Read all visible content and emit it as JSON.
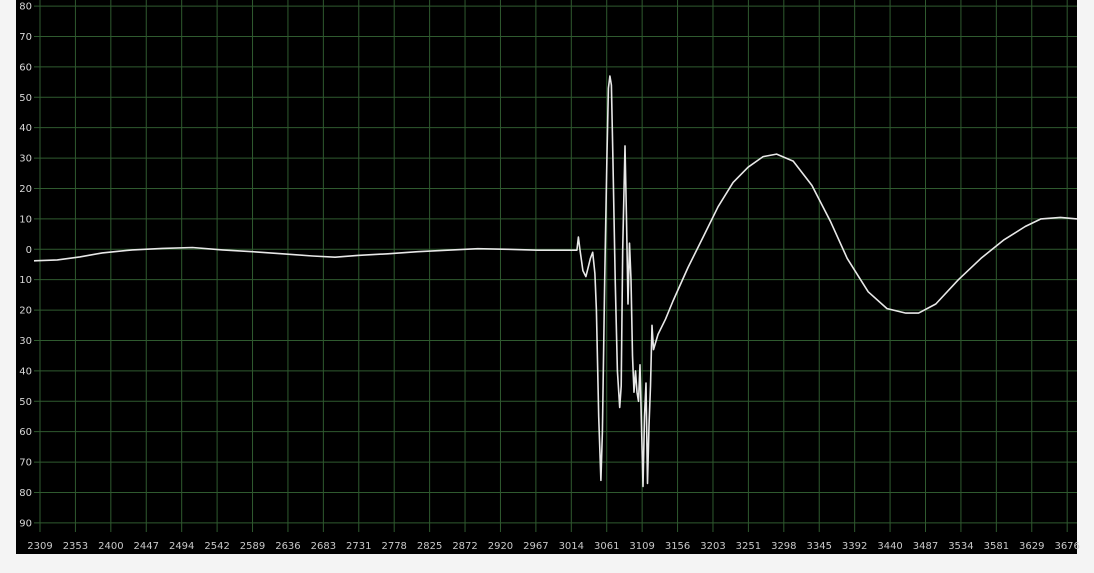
{
  "chart_data": {
    "type": "line",
    "title": "",
    "xlabel": "",
    "ylabel": "",
    "grid": true,
    "background": "#000000",
    "grid_color": "#2f5a2f",
    "line_color": "#e8e8e8",
    "xlim": [
      2309,
      3698
    ],
    "ylim": [
      -93,
      82
    ],
    "y_ticks": [
      {
        "v": 80,
        "label": "80"
      },
      {
        "v": 70,
        "label": "70"
      },
      {
        "v": 60,
        "label": "60"
      },
      {
        "v": 50,
        "label": "50"
      },
      {
        "v": 40,
        "label": "40"
      },
      {
        "v": 30,
        "label": "30"
      },
      {
        "v": 20,
        "label": "20"
      },
      {
        "v": 10,
        "label": "10"
      },
      {
        "v": 0,
        "label": "0"
      },
      {
        "v": -10,
        "label": "10"
      },
      {
        "v": -20,
        "label": "20"
      },
      {
        "v": -30,
        "label": "30"
      },
      {
        "v": -40,
        "label": "40"
      },
      {
        "v": -50,
        "label": "50"
      },
      {
        "v": -60,
        "label": "60"
      },
      {
        "v": -70,
        "label": "70"
      },
      {
        "v": -80,
        "label": "80"
      },
      {
        "v": -90,
        "label": "90"
      }
    ],
    "x_ticks": [
      "2309",
      "2353",
      "2400",
      "2447",
      "2494",
      "2542",
      "2589",
      "2636",
      "2683",
      "2731",
      "2778",
      "2825",
      "2872",
      "2920",
      "2967",
      "3014",
      "3061",
      "3109",
      "3156",
      "3203",
      "3251",
      "3298",
      "3345",
      "3392",
      "3440",
      "3487",
      "3534",
      "3581",
      "3629",
      "3676"
    ],
    "series": [
      {
        "points": [
          [
            2309,
            -3.8
          ],
          [
            2340,
            -3.5
          ],
          [
            2370,
            -2.5
          ],
          [
            2400,
            -1.2
          ],
          [
            2440,
            -0.2
          ],
          [
            2480,
            0.3
          ],
          [
            2520,
            0.6
          ],
          [
            2560,
            -0.2
          ],
          [
            2600,
            -0.8
          ],
          [
            2640,
            -1.5
          ],
          [
            2680,
            -2.2
          ],
          [
            2710,
            -2.6
          ],
          [
            2740,
            -2.0
          ],
          [
            2780,
            -1.5
          ],
          [
            2820,
            -0.8
          ],
          [
            2860,
            -0.3
          ],
          [
            2900,
            0.2
          ],
          [
            2940,
            0.0
          ],
          [
            2980,
            -0.3
          ],
          [
            3020,
            -0.3
          ],
          [
            3032,
            -0.3
          ],
          [
            3034,
            4
          ],
          [
            3036,
            0
          ],
          [
            3040,
            -7
          ],
          [
            3044,
            -9
          ],
          [
            3050,
            -3
          ],
          [
            3053,
            -1
          ],
          [
            3056,
            -8
          ],
          [
            3058,
            -20
          ],
          [
            3061,
            -55
          ],
          [
            3064,
            -76
          ],
          [
            3066,
            -60
          ],
          [
            3069,
            -10
          ],
          [
            3072,
            30
          ],
          [
            3074,
            53
          ],
          [
            3076,
            57
          ],
          [
            3078,
            54
          ],
          [
            3080,
            30
          ],
          [
            3083,
            -10
          ],
          [
            3086,
            -40
          ],
          [
            3089,
            -52
          ],
          [
            3091,
            -45
          ],
          [
            3093,
            0
          ],
          [
            3096,
            34
          ],
          [
            3098,
            10
          ],
          [
            3100,
            -18
          ],
          [
            3102,
            2
          ],
          [
            3104,
            -10
          ],
          [
            3106,
            -35
          ],
          [
            3108,
            -47
          ],
          [
            3110,
            -40
          ],
          [
            3112,
            -47
          ],
          [
            3114,
            -50
          ],
          [
            3116,
            -38
          ],
          [
            3118,
            -58
          ],
          [
            3120,
            -78
          ],
          [
            3122,
            -55
          ],
          [
            3124,
            -44
          ],
          [
            3126,
            -77
          ],
          [
            3128,
            -58
          ],
          [
            3130,
            -45
          ],
          [
            3132,
            -25
          ],
          [
            3134,
            -33
          ],
          [
            3140,
            -28
          ],
          [
            3150,
            -23
          ],
          [
            3160,
            -17
          ],
          [
            3180,
            -6
          ],
          [
            3200,
            4
          ],
          [
            3220,
            14
          ],
          [
            3240,
            22
          ],
          [
            3260,
            27
          ],
          [
            3280,
            30.5
          ],
          [
            3298,
            31.3
          ],
          [
            3320,
            29
          ],
          [
            3345,
            21
          ],
          [
            3370,
            9
          ],
          [
            3392,
            -3
          ],
          [
            3420,
            -14
          ],
          [
            3445,
            -19.5
          ],
          [
            3470,
            -21
          ],
          [
            3487,
            -21
          ],
          [
            3510,
            -18
          ],
          [
            3540,
            -10
          ],
          [
            3570,
            -3
          ],
          [
            3600,
            3
          ],
          [
            3629,
            7.5
          ],
          [
            3650,
            10
          ],
          [
            3676,
            10.5
          ],
          [
            3698,
            10
          ]
        ]
      }
    ]
  }
}
